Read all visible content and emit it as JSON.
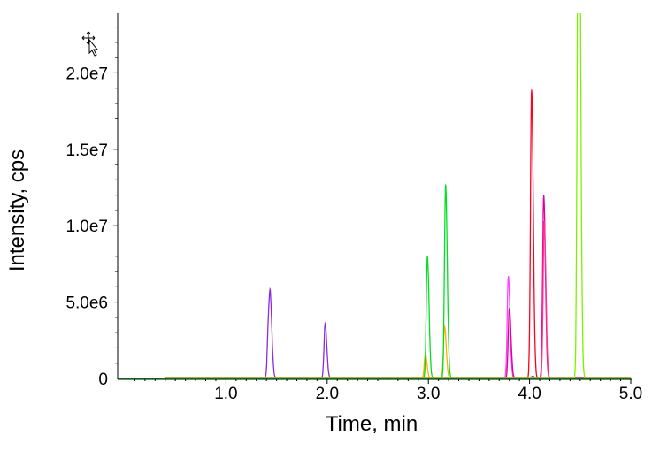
{
  "chart_data": {
    "type": "line",
    "title": "",
    "xlabel": "Time, min",
    "ylabel": "Intensity, cps",
    "xlim": [
      -0.07,
      5.0
    ],
    "ylim": [
      0,
      23900000
    ],
    "x_ticks": [
      1.0,
      2.0,
      3.0,
      4.0,
      5.0
    ],
    "x_tick_labels": [
      "1.0",
      "2.0",
      "3.0",
      "4.0",
      "5.0"
    ],
    "y_ticks": [
      0,
      5000000,
      10000000,
      15000000,
      20000000
    ],
    "y_tick_labels": [
      "0",
      "5.0e6",
      "1.0e7",
      "1.5e7",
      "2.0e7"
    ],
    "grid": false,
    "legend": "none",
    "series": [
      {
        "color": "#8a2be2",
        "peaks": [
          {
            "x": 1.42,
            "y": 3500000
          },
          {
            "x": 1.44,
            "y": 3900000
          },
          {
            "x": 1.98,
            "y": 3600000
          },
          {
            "x": 4.03,
            "y": 150000
          }
        ]
      },
      {
        "color": "#ffb000",
        "peaks": [
          {
            "x": 2.97,
            "y": 1600000
          },
          {
            "x": 3.16,
            "y": 3400000
          }
        ]
      },
      {
        "color": "#00e020",
        "peaks": [
          {
            "x": 2.99,
            "y": 8000000
          },
          {
            "x": 3.17,
            "y": 12700000
          }
        ]
      },
      {
        "color": "#ff40ff",
        "peaks": [
          {
            "x": 3.79,
            "y": 6700000
          }
        ]
      },
      {
        "color": "#e000a0",
        "peaks": [
          {
            "x": 3.8,
            "y": 4600000
          },
          {
            "x": 4.14,
            "y": 12000000
          }
        ]
      },
      {
        "color": "#ff0020",
        "peaks": [
          {
            "x": 4.02,
            "y": 18900000
          }
        ]
      },
      {
        "color": "#ff3090",
        "peaks": [
          {
            "x": 4.145,
            "y": 10300000
          }
        ]
      },
      {
        "color": "#80f000",
        "peaks": [
          {
            "x": 4.48,
            "y": 24500000
          },
          {
            "x": 4.49,
            "y": 21000000
          }
        ]
      }
    ]
  },
  "cursor_icon": "move-cursor-icon"
}
